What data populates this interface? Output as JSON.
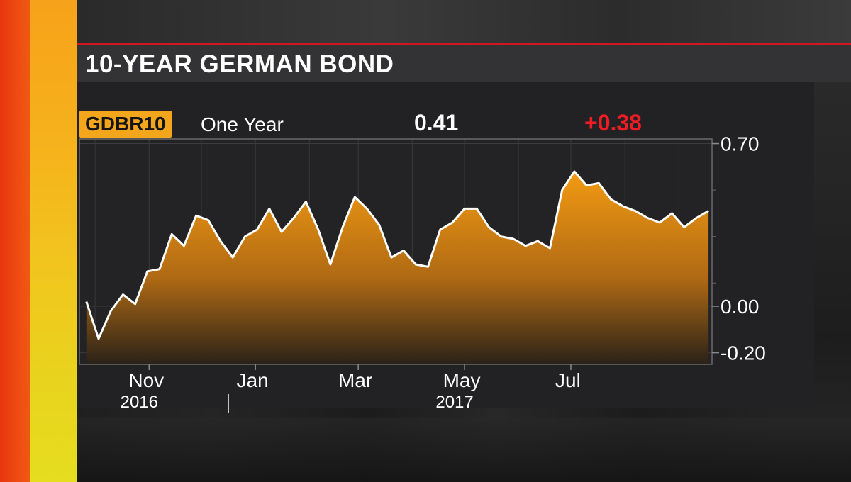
{
  "header": {
    "title": "10-YEAR GERMAN BOND"
  },
  "quote": {
    "ticker": "GDBR10",
    "period": "One Year",
    "last": "0.41",
    "change": "+0.38"
  },
  "colors": {
    "accent_red": "#d0161e",
    "ticker_bg": "#f3a51c",
    "change_red": "#ee1c25",
    "area_top": "#f29a12",
    "area_bottom": "#2a2218",
    "line": "#ffffff"
  },
  "chart_data": {
    "type": "area",
    "title": "10-YEAR GERMAN BOND",
    "series": [
      {
        "x": [
          "2016-09-26",
          "2016-10-03",
          "2016-10-10",
          "2016-10-17",
          "2016-10-24",
          "2016-10-31",
          "2016-11-07",
          "2016-11-14",
          "2016-11-21",
          "2016-11-28",
          "2016-12-05",
          "2016-12-12",
          "2016-12-19",
          "2016-12-26",
          "2017-01-02",
          "2017-01-09",
          "2017-01-16",
          "2017-01-23",
          "2017-01-30",
          "2017-02-06",
          "2017-02-13",
          "2017-02-20",
          "2017-02-27",
          "2017-03-06",
          "2017-03-13",
          "2017-03-20",
          "2017-03-27",
          "2017-04-03",
          "2017-04-10",
          "2017-04-17",
          "2017-04-24",
          "2017-05-01",
          "2017-05-08",
          "2017-05-15",
          "2017-05-22",
          "2017-05-29",
          "2017-06-05",
          "2017-06-12",
          "2017-06-19",
          "2017-06-26",
          "2017-07-03",
          "2017-07-10",
          "2017-07-17",
          "2017-07-24",
          "2017-07-31",
          "2017-08-07",
          "2017-08-14",
          "2017-08-21",
          "2017-08-28",
          "2017-09-04",
          "2017-09-11",
          "2017-09-18"
        ],
        "values": [
          0.02,
          -0.14,
          -0.02,
          0.05,
          0.01,
          0.15,
          0.16,
          0.31,
          0.26,
          0.39,
          0.37,
          0.28,
          0.21,
          0.3,
          0.33,
          0.42,
          0.32,
          0.38,
          0.45,
          0.33,
          0.18,
          0.34,
          0.47,
          0.42,
          0.35,
          0.21,
          0.24,
          0.18,
          0.17,
          0.33,
          0.36,
          0.42,
          0.42,
          0.34,
          0.3,
          0.29,
          0.26,
          0.28,
          0.25,
          0.5,
          0.58,
          0.52,
          0.53,
          0.46,
          0.43,
          0.41,
          0.38,
          0.36,
          0.4,
          0.34,
          0.38,
          0.41
        ]
      }
    ],
    "x_ticks": [
      {
        "label": "Nov",
        "date": "2016-11-01"
      },
      {
        "label": "Jan",
        "date": "2017-01-01"
      },
      {
        "label": "Mar",
        "date": "2017-03-01"
      },
      {
        "label": "May",
        "date": "2017-05-01"
      },
      {
        "label": "Jul",
        "date": "2017-07-01"
      }
    ],
    "year_labels": [
      {
        "label": "2016",
        "date": "2016-11-01"
      },
      {
        "label": "2017",
        "date": "2017-05-01"
      }
    ],
    "year_divider_date": "2017-01-01",
    "y_ticks": [
      0.7,
      0.0,
      -0.2
    ],
    "y_tick_labels": [
      "0.70",
      "0.00",
      "-0.20"
    ],
    "ylim": [
      -0.25,
      0.72
    ],
    "xlim": [
      "2016-09-22",
      "2017-09-20"
    ],
    "grid": true,
    "xlabel": "",
    "ylabel": ""
  }
}
